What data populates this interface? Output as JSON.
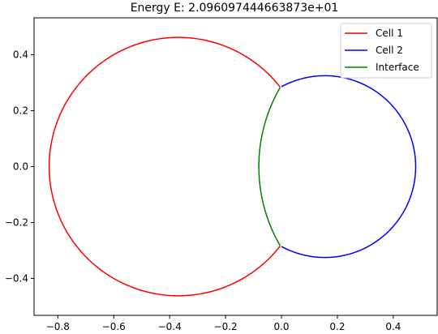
{
  "chart_data": {
    "type": "line",
    "title": "Energy E: 2.096097444663873e+01",
    "xlabel": "",
    "ylabel": "",
    "xlim": [
      -0.885,
      0.557
    ],
    "ylim": [
      -0.532,
      0.532
    ],
    "x_ticks": [
      {
        "value": -0.8,
        "label": "−0.8"
      },
      {
        "value": -0.6,
        "label": "−0.6"
      },
      {
        "value": -0.4,
        "label": "−0.4"
      },
      {
        "value": -0.2,
        "label": "−0.2"
      },
      {
        "value": 0.0,
        "label": "0.0"
      },
      {
        "value": 0.2,
        "label": "0.2"
      },
      {
        "value": 0.4,
        "label": "0.4"
      }
    ],
    "y_ticks": [
      {
        "value": 0.4,
        "label": "0.4"
      },
      {
        "value": 0.2,
        "label": "0.2"
      },
      {
        "value": 0.0,
        "label": "0.0"
      },
      {
        "value": -0.2,
        "label": "−0.2"
      },
      {
        "value": -0.4,
        "label": "−0.4"
      }
    ],
    "grid": false,
    "legend_position": "top-right",
    "series": [
      {
        "name": "Cell 1",
        "color": "#ff0000",
        "shape": "arc",
        "center": [
          -0.369,
          0.0
        ],
        "radius": 0.462,
        "start_deg": 37.9,
        "end_deg": 322.1
      },
      {
        "name": "Cell 2",
        "color": "#0000ff",
        "shape": "arc",
        "center": [
          0.155,
          0.0
        ],
        "radius": 0.325,
        "start_deg": -118.5,
        "end_deg": 118.5
      },
      {
        "name": "Interface",
        "color": "#008000",
        "shape": "arc",
        "center": [
          0.482,
          0.0
        ],
        "radius": 0.563,
        "start_deg": 149.9,
        "end_deg": 210.1
      }
    ]
  }
}
